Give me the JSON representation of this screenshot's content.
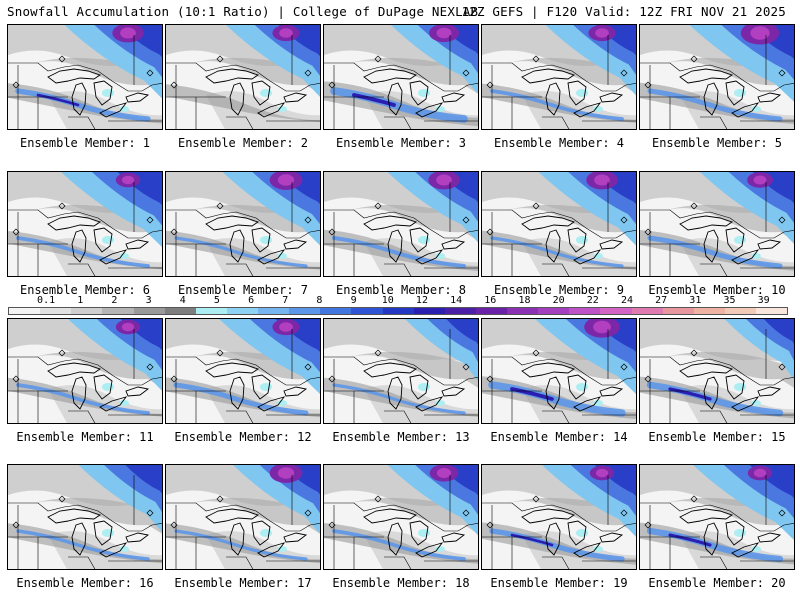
{
  "header": {
    "left": "Snowfall Accumulation (10:1 Ratio) | College of DuPage NEXLAB",
    "right": "12Z GEFS | F120 Valid: 12Z FRI NOV 21 2025"
  },
  "colorbar": {
    "labels": [
      "0.1",
      "1",
      "2",
      "3",
      "4",
      "5",
      "6",
      "7",
      "8",
      "9",
      "10",
      "12",
      "14",
      "16",
      "18",
      "20",
      "22",
      "24",
      "27",
      "31",
      "35",
      "39"
    ],
    "colors": [
      "#f4f4f4",
      "#e2e2e2",
      "#cfcfcf",
      "#b5b5b5",
      "#9a9a9a",
      "#7e7e7e",
      "#adeef2",
      "#8fd3f4",
      "#76b5ef",
      "#5c96e8",
      "#4476e0",
      "#2f55d6",
      "#2339c4",
      "#2a1fb0",
      "#4b1fa6",
      "#6a22a8",
      "#8a32b3",
      "#a43fbf",
      "#be52c6",
      "#d465c7",
      "#e07bb2",
      "#e8979e",
      "#eeb3a3",
      "#f2cbb8",
      "#f8e6dc"
    ]
  },
  "members": [
    {
      "label": "Ensemble Member: 1",
      "blue_ne": 0.85,
      "purple_ne": 0.55,
      "band": 0.45,
      "band_blue": 0.55
    },
    {
      "label": "Ensemble Member: 2",
      "blue_ne": 0.8,
      "purple_ne": 0.4,
      "band": 0.2,
      "band_blue": 0.1
    },
    {
      "label": "Ensemble Member: 3",
      "blue_ne": 0.7,
      "purple_ne": 0.5,
      "band": 0.9,
      "band_blue": 0.95
    },
    {
      "label": "Ensemble Member: 4",
      "blue_ne": 0.75,
      "purple_ne": 0.4,
      "band": 0.35,
      "band_blue": 0.3
    },
    {
      "label": "Ensemble Member: 5",
      "blue_ne": 0.95,
      "purple_ne": 0.8,
      "band": 0.55,
      "band_blue": 0.5
    },
    {
      "label": "Ensemble Member: 6",
      "blue_ne": 0.9,
      "purple_ne": 0.3,
      "band": 0.25,
      "band_blue": 0.3
    },
    {
      "label": "Ensemble Member: 7",
      "blue_ne": 0.85,
      "purple_ne": 0.6,
      "band": 0.3,
      "band_blue": 0.2
    },
    {
      "label": "Ensemble Member: 8",
      "blue_ne": 0.75,
      "purple_ne": 0.55,
      "band": 0.55,
      "band_blue": 0.35
    },
    {
      "label": "Ensemble Member: 9",
      "blue_ne": 0.85,
      "purple_ne": 0.55,
      "band": 0.35,
      "band_blue": 0.2
    },
    {
      "label": "Ensemble Member: 10",
      "blue_ne": 0.8,
      "purple_ne": 0.35,
      "band": 0.5,
      "band_blue": 0.5
    },
    {
      "label": "Ensemble Member: 11",
      "blue_ne": 0.8,
      "purple_ne": 0.3,
      "band": 0.3,
      "band_blue": 0.3
    },
    {
      "label": "Ensemble Member: 12",
      "blue_ne": 0.9,
      "purple_ne": 0.4,
      "band": 0.4,
      "band_blue": 0.5
    },
    {
      "label": "Ensemble Member: 13",
      "blue_ne": 0.5,
      "purple_ne": 0.15,
      "band": 0.35,
      "band_blue": 0.2
    },
    {
      "label": "Ensemble Member: 14",
      "blue_ne": 0.9,
      "purple_ne": 0.7,
      "band": 0.7,
      "band_blue": 0.9
    },
    {
      "label": "Ensemble Member: 15",
      "blue_ne": 0.45,
      "purple_ne": 0.1,
      "band": 0.6,
      "band_blue": 0.75
    },
    {
      "label": "Ensemble Member: 16",
      "blue_ne": 0.65,
      "purple_ne": 0.1,
      "band": 0.4,
      "band_blue": 0.25
    },
    {
      "label": "Ensemble Member: 17",
      "blue_ne": 0.7,
      "purple_ne": 0.6,
      "band": 0.4,
      "band_blue": 0.2
    },
    {
      "label": "Ensemble Member: 18",
      "blue_ne": 0.75,
      "purple_ne": 0.45,
      "band": 0.5,
      "band_blue": 0.3
    },
    {
      "label": "Ensemble Member: 19",
      "blue_ne": 0.8,
      "purple_ne": 0.3,
      "band": 0.65,
      "band_blue": 0.55
    },
    {
      "label": "Ensemble Member: 20",
      "blue_ne": 0.9,
      "purple_ne": 0.3,
      "band": 0.6,
      "band_blue": 0.7
    }
  ]
}
